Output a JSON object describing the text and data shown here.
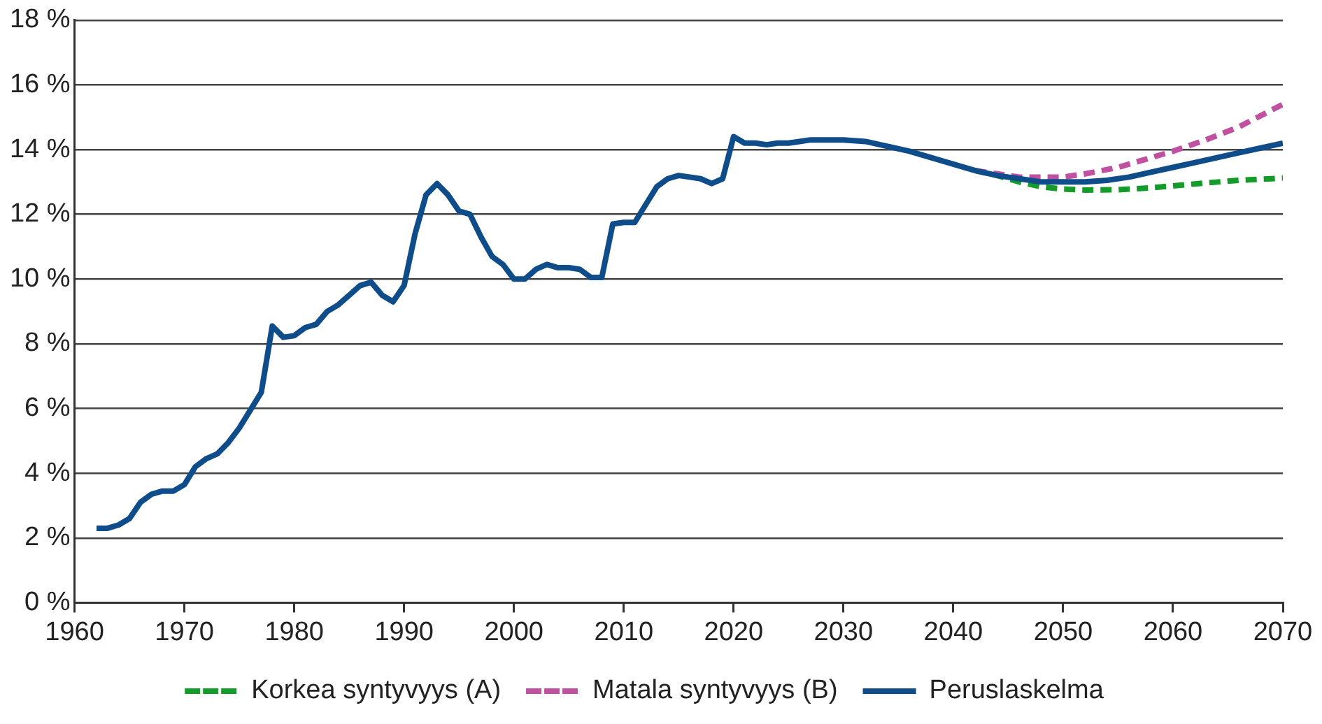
{
  "chart_data": {
    "type": "line",
    "grid": "y",
    "legend": "bottom",
    "marker": "none",
    "xlim": [
      1960,
      2070
    ],
    "xticks": [
      1960,
      1970,
      1980,
      1990,
      2000,
      2010,
      2020,
      2030,
      2040,
      2050,
      2060,
      2070
    ],
    "ylim": [
      0,
      18
    ],
    "yticks": [
      {
        "value": 0,
        "label": "0 %"
      },
      {
        "value": 2,
        "label": "2 %"
      },
      {
        "value": 4,
        "label": "4 %"
      },
      {
        "value": 6,
        "label": "6 %"
      },
      {
        "value": 8,
        "label": "8 %"
      },
      {
        "value": 10,
        "label": "10 %"
      },
      {
        "value": 12,
        "label": "12 %"
      },
      {
        "value": 14,
        "label": "14 %"
      },
      {
        "value": 16,
        "label": "16 %"
      },
      {
        "value": 18,
        "label": "18 %"
      }
    ],
    "series": [
      {
        "name": "Korkea syntyvyys (A)",
        "color": "#139c2a",
        "line_style": "dashed",
        "x": [
          2042,
          2044,
          2046,
          2048,
          2050,
          2052,
          2055,
          2058,
          2060,
          2063,
          2066,
          2070
        ],
        "values": [
          13.35,
          13.2,
          13.0,
          12.85,
          12.78,
          12.75,
          12.76,
          12.82,
          12.88,
          12.97,
          13.05,
          13.12
        ]
      },
      {
        "name": "Matala syntyvyys (B)",
        "color": "#c050a0",
        "line_style": "dashed",
        "x": [
          2042,
          2044,
          2046,
          2048,
          2050,
          2052,
          2055,
          2058,
          2060,
          2063,
          2066,
          2070
        ],
        "values": [
          13.35,
          13.25,
          13.15,
          13.15,
          13.15,
          13.25,
          13.45,
          13.75,
          13.95,
          14.3,
          14.7,
          15.4
        ]
      },
      {
        "name": "Peruslaskelma",
        "color": "#0f4c8a",
        "line_style": "solid",
        "x": [
          1962,
          1963,
          1964,
          1965,
          1966,
          1967,
          1968,
          1969,
          1970,
          1971,
          1972,
          1973,
          1974,
          1975,
          1976,
          1977,
          1978,
          1979,
          1980,
          1981,
          1982,
          1983,
          1984,
          1985,
          1986,
          1987,
          1988,
          1989,
          1990,
          1991,
          1992,
          1993,
          1994,
          1995,
          1996,
          1997,
          1998,
          1999,
          2000,
          2001,
          2002,
          2003,
          2004,
          2005,
          2006,
          2007,
          2008,
          2009,
          2010,
          2011,
          2012,
          2013,
          2014,
          2015,
          2016,
          2017,
          2018,
          2019,
          2020,
          2021,
          2022,
          2023,
          2024,
          2025,
          2026,
          2027,
          2028,
          2029,
          2030,
          2032,
          2034,
          2036,
          2038,
          2040,
          2042,
          2044,
          2046,
          2048,
          2050,
          2052,
          2054,
          2056,
          2058,
          2060,
          2062,
          2064,
          2066,
          2068,
          2070
        ],
        "values": [
          2.3,
          2.3,
          2.4,
          2.6,
          3.1,
          3.35,
          3.45,
          3.45,
          3.65,
          4.2,
          4.45,
          4.6,
          4.95,
          5.4,
          5.95,
          6.5,
          8.55,
          8.2,
          8.25,
          8.5,
          8.6,
          9.0,
          9.2,
          9.5,
          9.8,
          9.9,
          9.5,
          9.3,
          9.8,
          11.4,
          12.6,
          12.95,
          12.6,
          12.1,
          12.0,
          11.3,
          10.7,
          10.45,
          10.0,
          10.0,
          10.3,
          10.45,
          10.35,
          10.35,
          10.3,
          10.05,
          10.05,
          11.7,
          11.75,
          11.75,
          12.3,
          12.85,
          13.1,
          13.2,
          13.15,
          13.1,
          12.95,
          13.1,
          14.4,
          14.2,
          14.2,
          14.15,
          14.2,
          14.2,
          14.25,
          14.3,
          14.3,
          14.3,
          14.3,
          14.25,
          14.1,
          13.95,
          13.75,
          13.55,
          13.35,
          13.2,
          13.1,
          13.0,
          13.0,
          13.0,
          13.05,
          13.15,
          13.3,
          13.45,
          13.6,
          13.75,
          13.9,
          14.05,
          14.2
        ]
      }
    ]
  }
}
